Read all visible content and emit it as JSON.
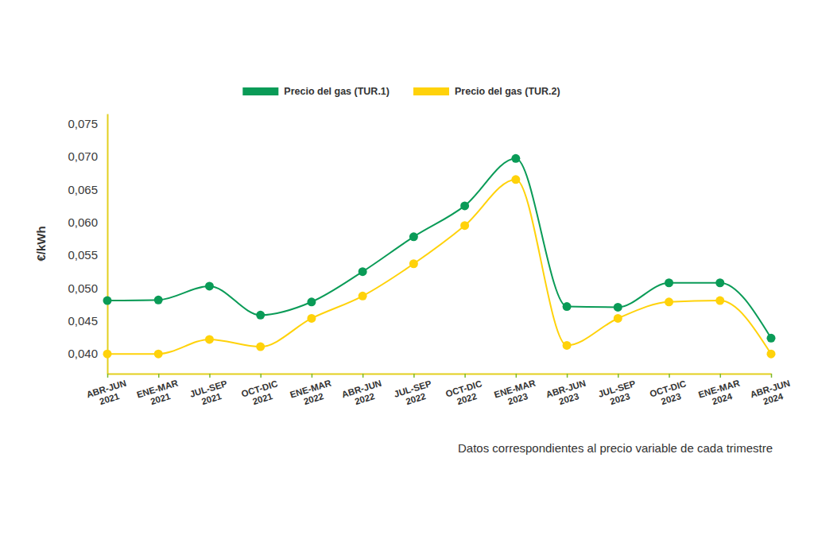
{
  "chart_data": {
    "type": "line",
    "y_label": "€/kWh",
    "annotation": "Datos correspondientes al precio variable de cada trimestre",
    "categories": [
      "ABR-JUN 2021",
      "ENE-MAR 2021",
      "JUL-SEP 2021",
      "OCT-DIC 2021",
      "ENE-MAR 2022",
      "ABR-JUN 2022",
      "JUL-SEP 2022",
      "OCT-DIC 2022",
      "ENE-MAR 2023",
      "ABR-JUN 2023",
      "JUL-SEP 2023",
      "OCT-DIC 2023",
      "ENE-MAR 2024",
      "ABR-JUN 2024"
    ],
    "series": [
      {
        "name": "Precio del gas (TUR.1)",
        "color": "#0a9b57",
        "marker": "circle",
        "values": [
          0.0481,
          0.0482,
          0.0503,
          0.0459,
          0.0479,
          0.0525,
          0.0578,
          0.0625,
          0.0697,
          0.0472,
          0.0471,
          0.0508,
          0.0508,
          0.0424
        ]
      },
      {
        "name": "Precio del gas (TUR.2)",
        "color": "#ffd20a",
        "marker": "circle",
        "values": [
          0.04,
          0.04,
          0.0422,
          0.0411,
          0.0454,
          0.0488,
          0.0537,
          0.0595,
          0.0665,
          0.0413,
          0.0454,
          0.0479,
          0.0481,
          0.04
        ]
      }
    ],
    "ylim": [
      0.037,
      0.0765
    ],
    "yticks": [
      {
        "value": 0.04,
        "label": "0,040"
      },
      {
        "value": 0.045,
        "label": "0,045"
      },
      {
        "value": 0.05,
        "label": "0,050"
      },
      {
        "value": 0.055,
        "label": "0,055"
      },
      {
        "value": 0.06,
        "label": "0,060"
      },
      {
        "value": 0.065,
        "label": "0,065"
      },
      {
        "value": 0.07,
        "label": "0,070"
      },
      {
        "value": 0.075,
        "label": "0,075"
      }
    ],
    "grid": false,
    "legend": "top"
  }
}
